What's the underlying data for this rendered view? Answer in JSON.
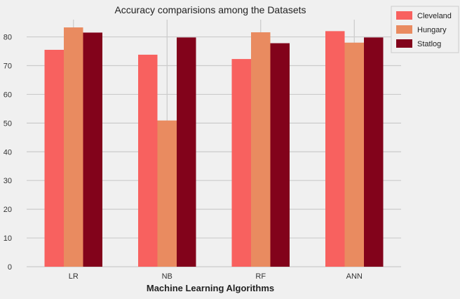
{
  "chart_data": {
    "type": "bar",
    "title": "Accuracy comparisions among the Datasets",
    "xlabel": "Machine Learning Algorithms",
    "ylabel": "",
    "categories": [
      "LR",
      "NB",
      "RF",
      "ANN"
    ],
    "series": [
      {
        "name": "Cleveland",
        "color": "#f8615f",
        "values": [
          75.5,
          73.8,
          72.3,
          82.0
        ]
      },
      {
        "name": "Hungary",
        "color": "#e98b60",
        "values": [
          83.3,
          50.9,
          81.6,
          78.0
        ]
      },
      {
        "name": "Statlog",
        "color": "#82031b",
        "values": [
          81.5,
          79.8,
          77.8,
          79.8
        ]
      }
    ],
    "ylim": [
      0,
      86
    ],
    "yticks": [
      0,
      10,
      20,
      30,
      40,
      50,
      60,
      70,
      80
    ],
    "grid": true,
    "legend_position": "top-right"
  }
}
